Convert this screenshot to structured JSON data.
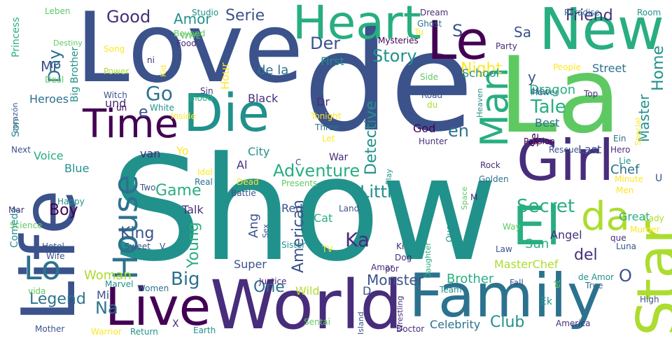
{
  "colors": {
    "c1": "#440154",
    "c2": "#472d7b",
    "c3": "#3b528b",
    "c4": "#2c728e",
    "c5": "#21918c",
    "c6": "#28ae80",
    "c7": "#5ec962",
    "c8": "#addc30",
    "c9": "#fde725"
  },
  "words": [
    {
      "text": "Show",
      "color": "c5"
    },
    {
      "text": "de",
      "color": "c3"
    },
    {
      "text": "Love",
      "color": "c3"
    },
    {
      "text": "La",
      "color": "c7"
    },
    {
      "text": "Life",
      "color": "c3"
    },
    {
      "text": "World",
      "color": "c2"
    },
    {
      "text": "Family",
      "color": "c4"
    },
    {
      "text": "Live",
      "color": "c1"
    },
    {
      "text": "New",
      "color": "c6"
    },
    {
      "text": "Heart",
      "color": "c6"
    },
    {
      "text": "Le",
      "color": "c1"
    },
    {
      "text": "Girl",
      "color": "c2"
    },
    {
      "text": "Die",
      "color": "c5"
    },
    {
      "text": "Time",
      "color": "c1"
    },
    {
      "text": "El",
      "color": "c6"
    },
    {
      "text": "Star",
      "color": "c8"
    },
    {
      "text": "House",
      "color": "c4"
    },
    {
      "text": "Man",
      "color": "c6"
    },
    {
      "text": "da",
      "color": "c8"
    },
    {
      "text": "Lo",
      "color": "c4"
    },
    {
      "text": "Adventure",
      "color": "c6"
    },
    {
      "text": "Tale",
      "color": "c6"
    },
    {
      "text": "Secret",
      "color": "c6"
    },
    {
      "text": "Little",
      "color": "c5"
    },
    {
      "text": "Story",
      "color": "c5"
    },
    {
      "text": "Game",
      "color": "c6"
    },
    {
      "text": "Young",
      "color": "c6"
    },
    {
      "text": "Big",
      "color": "c4"
    },
    {
      "text": "Legend",
      "color": "c4"
    },
    {
      "text": "Good",
      "color": "c2"
    },
    {
      "text": "Friend",
      "color": "c2"
    },
    {
      "text": "Night",
      "color": "c9"
    },
    {
      "text": "Serie",
      "color": "c3"
    },
    {
      "text": "Day",
      "color": "c4"
    },
    {
      "text": "Der",
      "color": "c3"
    },
    {
      "text": "King",
      "color": "c3"
    },
    {
      "text": "Boy",
      "color": "c1"
    },
    {
      "text": "Ka",
      "color": "c2"
    },
    {
      "text": "Go",
      "color": "c4"
    },
    {
      "text": "Amor",
      "color": "c5"
    },
    {
      "text": "Home",
      "color": "c5"
    },
    {
      "text": "Master",
      "color": "c5"
    },
    {
      "text": "Detective",
      "color": "c5"
    },
    {
      "text": "American",
      "color": "c3"
    },
    {
      "text": "One",
      "color": "c4"
    },
    {
      "text": "Club",
      "color": "c5"
    },
    {
      "text": "Na",
      "color": "c4"
    },
    {
      "text": "Mr",
      "color": "c3"
    },
    {
      "text": "en",
      "color": "c4"
    },
    {
      "text": "del",
      "color": "c2"
    },
    {
      "text": "O",
      "color": "c3"
    },
    {
      "text": "Brother",
      "color": "c6"
    },
    {
      "text": "Monster",
      "color": "c3"
    },
    {
      "text": "Woman",
      "color": "c8"
    },
    {
      "text": "Sa",
      "color": "c3"
    },
    {
      "text": "S",
      "color": "c3"
    },
    {
      "text": "Ang",
      "color": "c3"
    },
    {
      "text": "Sun",
      "color": "c6"
    },
    {
      "text": "Angel",
      "color": "c2"
    },
    {
      "text": "Great",
      "color": "c6"
    },
    {
      "text": "MasterChef",
      "color": "c8"
    },
    {
      "text": "Chef",
      "color": "c4"
    },
    {
      "text": "Super",
      "color": "c3"
    },
    {
      "text": "Red",
      "color": "c3"
    },
    {
      "text": "Cat",
      "color": "c6"
    },
    {
      "text": "Dragon",
      "color": "c6"
    },
    {
      "text": "Last",
      "color": "c3"
    },
    {
      "text": "Best",
      "color": "c4"
    },
    {
      "text": "God",
      "color": "c1"
    },
    {
      "text": "Hour",
      "color": "c9"
    },
    {
      "text": "de la",
      "color": "c4"
    },
    {
      "text": "Mi",
      "color": "c3"
    },
    {
      "text": "Wild",
      "color": "c8"
    },
    {
      "text": "Celebrity",
      "color": "c4"
    },
    {
      "text": "Dr",
      "color": "c2"
    },
    {
      "text": "First",
      "color": "c5"
    },
    {
      "text": "School",
      "color": "c5"
    },
    {
      "text": "Street",
      "color": "c4"
    },
    {
      "text": "Black",
      "color": "c2"
    },
    {
      "text": "Blue",
      "color": "c5"
    },
    {
      "text": "Talk",
      "color": "c2"
    },
    {
      "text": "City",
      "color": "c5"
    },
    {
      "text": "Heroes",
      "color": "c4"
    },
    {
      "text": "Voice",
      "color": "c6"
    },
    {
      "text": "Princess",
      "color": "c6"
    },
    {
      "text": "Big Brother",
      "color": "c5"
    },
    {
      "text": "Comedy",
      "color": "c5"
    },
    {
      "text": "und",
      "color": "c2"
    },
    {
      "text": "Hai",
      "color": "c4"
    },
    {
      "text": "Yo",
      "color": "c9"
    },
    {
      "text": "Al",
      "color": "c2"
    },
    {
      "text": "van",
      "color": "c2"
    },
    {
      "text": "Se",
      "color": "c1"
    },
    {
      "text": "y",
      "color": "c3"
    },
    {
      "text": "e",
      "color": "c3"
    },
    {
      "text": "D",
      "color": "c3"
    },
    {
      "text": "U",
      "color": "c3"
    },
    {
      "text": "War",
      "color": "c2"
    },
    {
      "text": "Ek",
      "color": "c5"
    },
    {
      "text": "Son",
      "color": "c5"
    },
    {
      "text": "Studio",
      "color": "c5"
    },
    {
      "text": "Ghost",
      "color": "c4"
    },
    {
      "text": "Dream",
      "color": "c2"
    },
    {
      "text": "Paradise",
      "color": "c4"
    },
    {
      "text": "Room",
      "color": "c5"
    },
    {
      "text": "Leben",
      "color": "c7"
    },
    {
      "text": "Beyond",
      "color": "c7"
    },
    {
      "text": "WWE",
      "color": "c7"
    },
    {
      "text": "Destiny",
      "color": "c7"
    },
    {
      "text": "Food",
      "color": "c2"
    },
    {
      "text": "Song",
      "color": "c9"
    },
    {
      "text": "ni",
      "color": "c2"
    },
    {
      "text": "Power",
      "color": "c8"
    },
    {
      "text": "Deal",
      "color": "c7"
    },
    {
      "text": "Kid",
      "color": "c9"
    },
    {
      "text": "Tu",
      "color": "c9"
    },
    {
      "text": "Mysteries",
      "color": "c1"
    },
    {
      "text": "Party",
      "color": "c2"
    },
    {
      "text": "Side",
      "color": "c7"
    },
    {
      "text": "People",
      "color": "c9"
    },
    {
      "text": "Sin",
      "color": "c2"
    },
    {
      "text": "Witch",
      "color": "c3"
    },
    {
      "text": "un",
      "color": "c1"
    },
    {
      "text": "Blood",
      "color": "c6"
    },
    {
      "text": "White",
      "color": "c5"
    },
    {
      "text": "Inside",
      "color": "c9"
    },
    {
      "text": "Tonight",
      "color": "c9"
    },
    {
      "text": "Road",
      "color": "c3"
    },
    {
      "text": "du",
      "color": "c8"
    },
    {
      "text": "Heaven",
      "color": "c5"
    },
    {
      "text": "Flower",
      "color": "c4"
    },
    {
      "text": "Top",
      "color": "c2"
    },
    {
      "text": "Three",
      "color": "c4"
    },
    {
      "text": "Let",
      "color": "c9"
    },
    {
      "text": "Hunter",
      "color": "c2"
    },
    {
      "text": "Passion",
      "color": "c1"
    },
    {
      "text": "Ein",
      "color": "c4"
    },
    {
      "text": "Special",
      "color": "c9"
    },
    {
      "text": "corazón",
      "color": "c3"
    },
    {
      "text": "Next",
      "color": "c3"
    },
    {
      "text": "C",
      "color": "c3"
    },
    {
      "text": "Rescue",
      "color": "c3"
    },
    {
      "text": "Hero",
      "color": "c2"
    },
    {
      "text": "Lie",
      "color": "c5"
    },
    {
      "text": "Rock",
      "color": "c2"
    },
    {
      "text": "Idol",
      "color": "c9"
    },
    {
      "text": "Dead",
      "color": "c9"
    },
    {
      "text": "Real",
      "color": "c4"
    },
    {
      "text": "Two",
      "color": "c3"
    },
    {
      "text": "Battle",
      "color": "c3"
    },
    {
      "text": "Presents",
      "color": "c7"
    },
    {
      "text": "Play",
      "color": "c5"
    },
    {
      "text": "Golden",
      "color": "c4"
    },
    {
      "text": "Minute",
      "color": "c9"
    },
    {
      "text": "Men",
      "color": "c9"
    },
    {
      "text": "Happy",
      "color": "c5"
    },
    {
      "text": "Mar",
      "color": "c2"
    },
    {
      "text": "Science",
      "color": "c7"
    },
    {
      "text": "Land",
      "color": "c3"
    },
    {
      "text": "M",
      "color": "c2"
    },
    {
      "text": "Space",
      "color": "c7"
    },
    {
      "text": "Queen",
      "color": "c5"
    },
    {
      "text": "que",
      "color": "c2"
    },
    {
      "text": "Murder",
      "color": "c9"
    },
    {
      "text": "Lady",
      "color": "c8"
    },
    {
      "text": "Way",
      "color": "c7"
    },
    {
      "text": "Hotel",
      "color": "c3"
    },
    {
      "text": "Wife",
      "color": "c3"
    },
    {
      "text": "Sweet",
      "color": "c3"
    },
    {
      "text": "V",
      "color": "c3"
    },
    {
      "text": "Sex",
      "color": "c3"
    },
    {
      "text": "Sister",
      "color": "c5"
    },
    {
      "text": "TV",
      "color": "c9"
    },
    {
      "text": "Ki",
      "color": "c2"
    },
    {
      "text": "Dog",
      "color": "c2"
    },
    {
      "text": "Law",
      "color": "c3"
    },
    {
      "text": "Luna",
      "color": "c3"
    },
    {
      "text": "Marvel",
      "color": "c5"
    },
    {
      "text": "Women",
      "color": "c4"
    },
    {
      "text": "vida",
      "color": "c7"
    },
    {
      "text": "Justice",
      "color": "c2"
    },
    {
      "text": "Amar",
      "color": "c2"
    },
    {
      "text": "por",
      "color": "c2"
    },
    {
      "text": "Daughter",
      "color": "c6"
    },
    {
      "text": "de Amor",
      "color": "c5"
    },
    {
      "text": "True",
      "color": "c4"
    },
    {
      "text": "Fall",
      "color": "c3"
    },
    {
      "text": "Team",
      "color": "c5"
    },
    {
      "text": "Wrestling",
      "color": "c2"
    },
    {
      "text": "Island",
      "color": "c3"
    },
    {
      "text": "et",
      "color": "c7"
    },
    {
      "text": "High",
      "color": "c3"
    },
    {
      "text": "Mother",
      "color": "c3"
    },
    {
      "text": "Warrior",
      "color": "c9"
    },
    {
      "text": "Return",
      "color": "c5"
    },
    {
      "text": "X",
      "color": "c2"
    },
    {
      "text": "Earth",
      "color": "c5"
    },
    {
      "text": "Sentai",
      "color": "c7"
    },
    {
      "text": "Doctor",
      "color": "c2"
    },
    {
      "text": "America",
      "color": "c2"
    }
  ]
}
